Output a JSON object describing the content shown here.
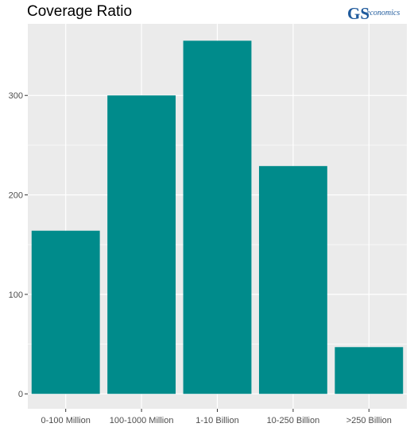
{
  "colors": {
    "bar": "#008B8B",
    "panel": "#EBEBEB",
    "grid": "#FFFFFF",
    "text": "#4D4D4D",
    "logo": "#1F5A9C"
  },
  "logo": {
    "main_text": "GS",
    "sub_text": "economics"
  },
  "chart_data": {
    "type": "bar",
    "title": "Coverage Ratio",
    "xlabel": "",
    "ylabel": "",
    "categories": [
      "0-100 Million",
      "100-1000 Million",
      "1-10 Billion",
      "10-250 Billion",
      ">250 Billion"
    ],
    "values": [
      164,
      300,
      355,
      229,
      47
    ],
    "ylim": [
      -15,
      372
    ],
    "yticks": [
      0,
      100,
      200,
      300
    ],
    "grid": true,
    "legend": "none"
  }
}
